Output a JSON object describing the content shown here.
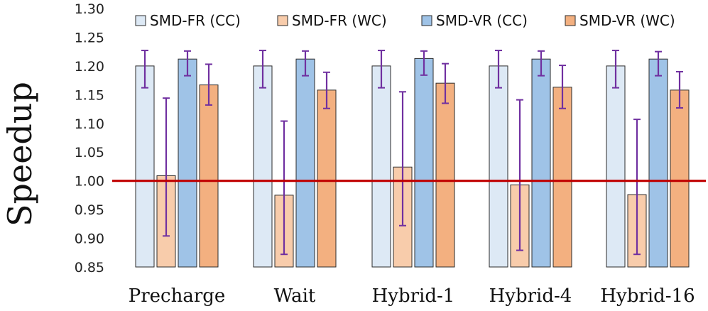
{
  "chart_data": {
    "type": "bar",
    "title": "",
    "xlabel": "",
    "ylabel": "Speedup",
    "ylim": [
      0.85,
      1.3
    ],
    "yticks": [
      "0.85",
      "0.90",
      "0.95",
      "1.00",
      "1.05",
      "1.10",
      "1.15",
      "1.20",
      "1.25",
      "1.30"
    ],
    "grid": false,
    "legend_position": "top",
    "reference_line": {
      "value": 1.0,
      "color": "#c00000"
    },
    "categories": [
      "Precharge",
      "Wait",
      "Hybrid-1",
      "Hybrid-4",
      "Hybrid-16"
    ],
    "series": [
      {
        "name": "SMD-FR (CC)",
        "color": "#dde9f5",
        "values": [
          1.2,
          1.2,
          1.2,
          1.2,
          1.2
        ],
        "err_low": [
          1.162,
          1.162,
          1.162,
          1.162,
          1.162
        ],
        "err_high": [
          1.227,
          1.227,
          1.227,
          1.227,
          1.227
        ]
      },
      {
        "name": "SMD-FR (WC)",
        "color": "#f8ccab",
        "values": [
          1.009,
          0.975,
          1.024,
          0.993,
          0.976
        ],
        "err_low": [
          0.904,
          0.872,
          0.922,
          0.879,
          0.872
        ],
        "err_high": [
          1.144,
          1.104,
          1.155,
          1.141,
          1.107
        ]
      },
      {
        "name": "SMD-VR (CC)",
        "color": "#9fc3e7",
        "values": [
          1.212,
          1.212,
          1.213,
          1.212,
          1.212
        ],
        "err_low": [
          1.183,
          1.183,
          1.184,
          1.183,
          1.183
        ],
        "err_high": [
          1.226,
          1.226,
          1.226,
          1.226,
          1.225
        ]
      },
      {
        "name": "SMD-VR (WC)",
        "color": "#f3b080",
        "values": [
          1.167,
          1.158,
          1.17,
          1.163,
          1.158
        ],
        "err_low": [
          1.132,
          1.126,
          1.135,
          1.126,
          1.127
        ],
        "err_high": [
          1.203,
          1.189,
          1.204,
          1.201,
          1.19
        ]
      }
    ],
    "error_bar_color": "#7030a0"
  }
}
